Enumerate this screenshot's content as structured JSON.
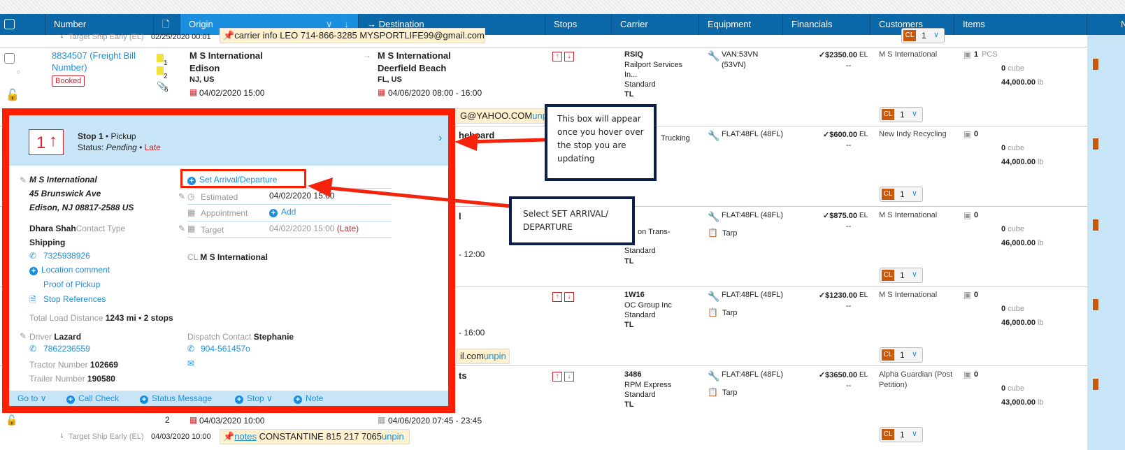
{
  "header": {
    "columns": [
      "Number",
      "Origin",
      "Destination",
      "Stops",
      "Carrier",
      "Equipment",
      "Financials",
      "Customers",
      "Items",
      "N"
    ]
  },
  "top_row": {
    "target_label": "Target Ship Early (EL)",
    "target_value": "02/25/2020 00:01",
    "note": "carrier info  LEO 714-866-3285 MYSPORTLIFE99@gmail.com"
  },
  "load": {
    "number": "8834507 (Freight Bill",
    "number2": "Number)",
    "status": "Booked",
    "doc_count1": "1",
    "doc_count2": "2",
    "attach_count": "6",
    "origin": {
      "name": "M S International",
      "city": "Edison",
      "state": "NJ, US",
      "date": "04/02/2020 15:00"
    },
    "destination": {
      "name": "M S International",
      "city": "Deerfield Beach",
      "state": "FL, US",
      "date": "04/06/2020 08:00 - 16:00"
    }
  },
  "rows": [
    {
      "carrier": [
        "RSIQ",
        "Railport Services",
        "In...",
        "Standard",
        "TL"
      ],
      "equipment": "VAN:53VN",
      "equipment2": "(53VN)",
      "amount": "$2350.00",
      "el": "EL",
      "dash": "--",
      "customer": "M S International",
      "items": "1",
      "items_unit": "PCS",
      "cube": "0",
      "cube_unit": "cube",
      "weight": "44,000.00",
      "weight_unit": "lb"
    },
    {
      "carrier": [
        "Trucking"
      ],
      "equipment": "FLAT:48FL (48FL)",
      "amount": "$600.00",
      "el": "EL",
      "dash": "--",
      "customer": "New Indy Recycling",
      "items": "0",
      "cube": "0",
      "cube_unit": "cube",
      "weight": "44,000.00",
      "weight_unit": "lb"
    },
    {
      "carrier": [
        "on Trans-",
        "Standard",
        "TL"
      ],
      "equipment": "FLAT:48FL (48FL)",
      "accessory": "Tarp",
      "amount": "$875.00",
      "el": "EL",
      "dash": "--",
      "customer": "M S International",
      "items": "0",
      "cube": "0",
      "cube_unit": "cube",
      "weight": "46,000.00",
      "weight_unit": "lb"
    },
    {
      "carrier": [
        "1W16",
        "OC Group Inc",
        "Standard",
        "TL"
      ],
      "equipment": "FLAT:48FL (48FL)",
      "accessory": "Tarp",
      "amount": "$1230.00",
      "el": "EL",
      "dash": "--",
      "customer": "M S International",
      "items": "0",
      "cube": "0",
      "cube_unit": "cube",
      "weight": "46,000.00",
      "weight_unit": "lb"
    },
    {
      "carrier": [
        "3486",
        "RPM Express",
        "Standard",
        "TL"
      ],
      "equipment": "FLAT:48FL (48FL)",
      "accessory": "Tarp",
      "amount": "$3650.00",
      "el": "EL",
      "dash": "--",
      "customer": "Alpha Guardian (Post",
      "customer2": "Petition)",
      "items": "0",
      "cube": "0",
      "cube_unit": "cube",
      "weight": "43,000.00",
      "weight_unit": "lb"
    }
  ],
  "cl": {
    "badge": "CL",
    "value": "1"
  },
  "fragments": {
    "r1_note": "G@YAHOO.COM",
    "unpin": "unpin",
    "r2": "heboard",
    "r3": "l",
    "r3_time": "- 12:00",
    "r4_time": "- 16:00",
    "r4_note": "il.com",
    "r5": "ts",
    "b_count": "2",
    "b_origin_date": "04/03/2020 10:00",
    "b_dest_date": "04/06/2020 07:45 - 23:45",
    "b_target_label": "Target Ship Early (EL)",
    "b_target_value": "04/03/2020 10:00",
    "b_note_label": "notes",
    "b_note": "CONSTANTINE 815 217 7065"
  },
  "popup": {
    "stop_num": "1",
    "title": "Stop 1",
    "type": "• Pickup",
    "status_label": "Status:",
    "status": "Pending",
    "late": "Late",
    "address": [
      "M S International",
      "45 Brunswick Ave",
      "Edison, NJ 08817-2588 US"
    ],
    "contact_name": "Dhara Shah",
    "contact_type_label": "Contact Type",
    "contact_type": "Shipping",
    "phone": "7325938926",
    "location_comment": "Location comment",
    "proof": "Proof of Pickup",
    "stop_refs": "Stop References",
    "distance_label": "Total Load Distance",
    "distance": "1243 mi • 2 stops",
    "driver_label": "Driver",
    "driver": "Lazard",
    "driver_phone": "7862236559",
    "tractor_label": "Tractor Number",
    "tractor": "102669",
    "trailer_label": "Trailer Number",
    "trailer": "190580",
    "set_arrival": "Set Arrival/Departure",
    "estimated_label": "Estimated",
    "estimated": "04/02/2020 15:00",
    "appointment_label": "Appointment",
    "add": "Add",
    "target_label": "Target",
    "target": "04/02/2020 15:00",
    "target_late": "(Late)",
    "cl_label": "CL",
    "cl_name": "M S International",
    "dispatch_label": "Dispatch Contact",
    "dispatch": "Stephanie",
    "dispatch_phone": "904-561457o",
    "footer": {
      "goto": "Go to",
      "call_check": "Call Check",
      "status_message": "Status Message",
      "stop": "Stop",
      "note": "Note"
    }
  },
  "callouts": {
    "hover": "This box will appear once you hover over the stop you are updating",
    "select": "Select SET ARRIVAL/ DEPARTURE"
  },
  "colors": {
    "header": "#0b68a8",
    "active_header": "#1a8fe0",
    "highlight": "#ff1e00",
    "callout_border": "#0c1e4a",
    "link": "#1a8fe0"
  }
}
